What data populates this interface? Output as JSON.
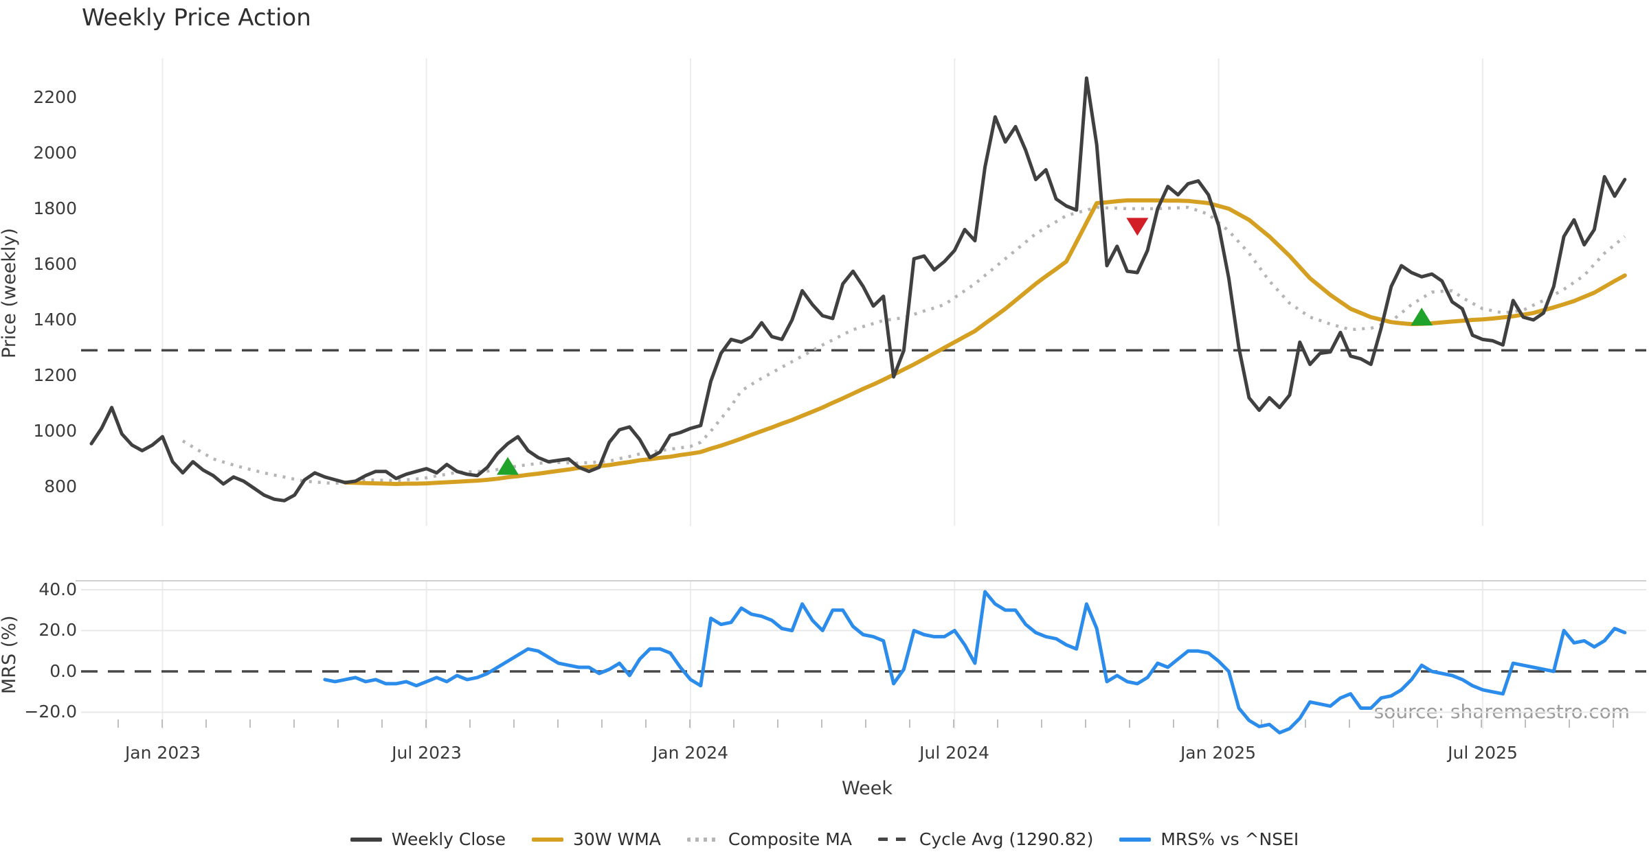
{
  "title": "Weekly Price Action",
  "source_note": "source: sharemaestro.com",
  "colors": {
    "weekly_close": "#404040",
    "wma_30w": "#d5a021",
    "composite_ma": "#b5b5b5",
    "cycle_avg": "#474747",
    "mrs_line": "#2b8ceb",
    "buy_marker": "#1fa32b",
    "sell_marker": "#d21e26",
    "grid": "#ececeb",
    "text": "#3a3a3a",
    "source_text": "#9b9b9b"
  },
  "legend": [
    {
      "label": "Weekly Close",
      "style": "solid-dark"
    },
    {
      "label": "30W WMA",
      "style": "solid-gold"
    },
    {
      "label": "Composite MA",
      "style": "dotted-gray"
    },
    {
      "label": "Cycle Avg (1290.82)",
      "style": "dashed-dark"
    },
    {
      "label": "MRS% vs ^NSEI",
      "style": "solid-blue"
    }
  ],
  "chart_data": {
    "type": "line",
    "x": {
      "xlabel": "Week",
      "n": 152,
      "start": "2022-11-14",
      "step_days": 7,
      "tick_labels": [
        "Jan 2023",
        "Jul 2023",
        "Jan 2024",
        "Jul 2024",
        "Jan 2025",
        "Jul 2025"
      ],
      "tick_index": [
        7,
        33,
        59,
        85,
        111,
        137
      ]
    },
    "panels": [
      {
        "ylabel": "Price (weekly)",
        "ylim": [
          620,
          2350
        ],
        "yticks": [
          2200,
          2000,
          1800,
          1600,
          1400,
          1200,
          1000,
          800
        ],
        "ytick_labels": [
          "2200",
          "2000",
          "1800",
          "1600",
          "1400",
          "1200",
          "1000",
          "800"
        ],
        "hline": {
          "label": "Cycle Avg (1290.82)",
          "value": 1290.82
        },
        "markers": [
          {
            "shape": "triangle-up",
            "color": "#1fa32b",
            "index": 41,
            "value": 875
          },
          {
            "shape": "triangle-down",
            "color": "#d21e26",
            "index": 103,
            "value": 1735
          },
          {
            "shape": "triangle-up",
            "color": "#1fa32b",
            "index": 131,
            "value": 1412
          }
        ],
        "series": [
          {
            "name": "Weekly Close",
            "values": [
              955,
              1010,
              1085,
              990,
              950,
              930,
              950,
              980,
              890,
              850,
              890,
              860,
              840,
              810,
              835,
              820,
              795,
              770,
              755,
              750,
              770,
              825,
              850,
              835,
              825,
              815,
              820,
              840,
              855,
              855,
              830,
              845,
              855,
              865,
              850,
              880,
              855,
              845,
              840,
              870,
              920,
              955,
              980,
              930,
              905,
              890,
              895,
              900,
              870,
              855,
              870,
              960,
              1005,
              1015,
              970,
              905,
              925,
              985,
              995,
              1010,
              1020,
              1180,
              1280,
              1330,
              1320,
              1340,
              1390,
              1340,
              1330,
              1400,
              1505,
              1455,
              1415,
              1405,
              1530,
              1575,
              1520,
              1450,
              1485,
              1195,
              1290,
              1620,
              1630,
              1580,
              1610,
              1650,
              1725,
              1685,
              1950,
              2130,
              2040,
              2095,
              2010,
              1905,
              1940,
              1835,
              1810,
              1795,
              2270,
              2030,
              1595,
              1665,
              1575,
              1570,
              1650,
              1800,
              1880,
              1850,
              1890,
              1900,
              1850,
              1740,
              1550,
              1300,
              1120,
              1075,
              1120,
              1085,
              1130,
              1320,
              1240,
              1280,
              1285,
              1355,
              1270,
              1260,
              1240,
              1370,
              1520,
              1595,
              1570,
              1555,
              1565,
              1540,
              1465,
              1440,
              1345,
              1330,
              1325,
              1310,
              1470,
              1410,
              1400,
              1425,
              1520,
              1700,
              1760,
              1670,
              1725,
              1915,
              1845,
              1905
            ]
          },
          {
            "name": "30W WMA",
            "values": [
              null,
              null,
              null,
              null,
              null,
              null,
              null,
              null,
              null,
              null,
              null,
              null,
              null,
              null,
              null,
              null,
              null,
              null,
              null,
              null,
              null,
              null,
              null,
              null,
              null,
              815,
              814,
              813,
              812,
              811,
              810,
              811,
              811,
              812,
              814,
              816,
              818,
              820,
              822,
              825,
              829,
              834,
              838,
              843,
              847,
              852,
              857,
              862,
              868,
              871,
              874,
              878,
              884,
              889,
              895,
              899,
              904,
              908,
              914,
              919,
              925,
              937,
              948,
              960,
              973,
              987,
              1000,
              1013,
              1027,
              1040,
              1055,
              1070,
              1085,
              1102,
              1118,
              1135,
              1152,
              1168,
              1185,
              1203,
              1222,
              1240,
              1260,
              1280,
              1300,
              1320,
              1340,
              1360,
              1387,
              1413,
              1440,
              1470,
              1500,
              1530,
              1557,
              1583,
              1610,
              1680,
              1750,
              1820,
              1823,
              1827,
              1830,
              1830,
              1830,
              1830,
              1829,
              1829,
              1828,
              1824,
              1820,
              1810,
              1800,
              1780,
              1760,
              1730,
              1700,
              1665,
              1630,
              1590,
              1550,
              1520,
              1490,
              1465,
              1440,
              1425,
              1410,
              1401,
              1392,
              1388,
              1385,
              1386,
              1388,
              1391,
              1394,
              1397,
              1400,
              1402,
              1405,
              1409,
              1413,
              1419,
              1425,
              1435,
              1445,
              1456,
              1468,
              1483,
              1498,
              1519,
              1540,
              1560
            ]
          },
          {
            "name": "Composite MA",
            "values": [
              null,
              null,
              null,
              null,
              null,
              null,
              null,
              null,
              null,
              965,
              943,
              921,
              900,
              889,
              878,
              868,
              859,
              850,
              842,
              835,
              827,
              820,
              817,
              814,
              812,
              816,
              820,
              825,
              824,
              823,
              822,
              825,
              828,
              832,
              839,
              845,
              852,
              853,
              855,
              856,
              862,
              868,
              875,
              879,
              884,
              888,
              887,
              886,
              885,
              887,
              889,
              892,
              901,
              909,
              918,
              924,
              930,
              935,
              940,
              945,
              960,
              1000,
              1045,
              1090,
              1145,
              1168,
              1190,
              1210,
              1230,
              1250,
              1270,
              1290,
              1310,
              1328,
              1347,
              1365,
              1376,
              1387,
              1398,
              1403,
              1408,
              1420,
              1432,
              1443,
              1455,
              1480,
              1505,
              1530,
              1560,
              1590,
              1620,
              1650,
              1680,
              1710,
              1732,
              1753,
              1775,
              1785,
              1795,
              1805,
              1803,
              1802,
              1800,
              1800,
              1800,
              1800,
              1802,
              1803,
              1805,
              1793,
              1780,
              1750,
              1720,
              1680,
              1640,
              1590,
              1540,
              1500,
              1460,
              1435,
              1410,
              1398,
              1385,
              1375,
              1365,
              1368,
              1370,
              1383,
              1395,
              1425,
              1455,
              1478,
              1500,
              1503,
              1505,
              1480,
              1460,
              1440,
              1433,
              1425,
              1430,
              1435,
              1453,
              1470,
              1490,
              1510,
              1535,
              1560,
              1600,
              1640,
              1670,
              1700
            ]
          }
        ]
      },
      {
        "ylabel": "MRS (%)",
        "ylim": [
          -35,
          44
        ],
        "yticks": [
          40.0,
          20.0,
          0.0,
          -20.0
        ],
        "ytick_labels": [
          "40.0",
          "20.0",
          "0.0",
          "−20.0"
        ],
        "zero_line_dashed": true,
        "series": [
          {
            "name": "MRS% vs ^NSEI",
            "values": [
              null,
              null,
              null,
              null,
              null,
              null,
              null,
              null,
              null,
              null,
              null,
              null,
              null,
              null,
              null,
              null,
              null,
              null,
              null,
              null,
              null,
              null,
              null,
              -4,
              -5,
              -4,
              -3,
              -5,
              -4,
              -6,
              -6,
              -5,
              -7,
              -5,
              -3,
              -5,
              -2,
              -4,
              -3,
              -1,
              2,
              5,
              8,
              11,
              10,
              7,
              4,
              3,
              2,
              2,
              -1,
              1,
              4,
              -2,
              6,
              11,
              11,
              9,
              2,
              -4,
              -7,
              26,
              23,
              24,
              31,
              28,
              27,
              25,
              21,
              20,
              33,
              25,
              20,
              30,
              30,
              22,
              18,
              17,
              15,
              -6,
              1,
              20,
              18,
              17,
              17,
              20,
              13,
              4,
              39,
              33,
              30,
              30,
              23,
              19,
              17,
              16,
              13,
              11,
              33,
              21,
              -5,
              -2,
              -5,
              -6,
              -3,
              4,
              2,
              6,
              10,
              10,
              9,
              5,
              0,
              -18,
              -24,
              -27,
              -26,
              -30,
              -28,
              -23,
              -15,
              -16,
              -17,
              -13,
              -11,
              -18,
              -18,
              -13,
              -12,
              -9,
              -4,
              3,
              0,
              -1,
              -2,
              -4,
              -7,
              -9,
              -10,
              -11,
              4,
              3,
              2,
              1,
              0,
              20,
              14,
              15,
              12,
              15,
              21,
              19
            ]
          }
        ]
      }
    ]
  }
}
